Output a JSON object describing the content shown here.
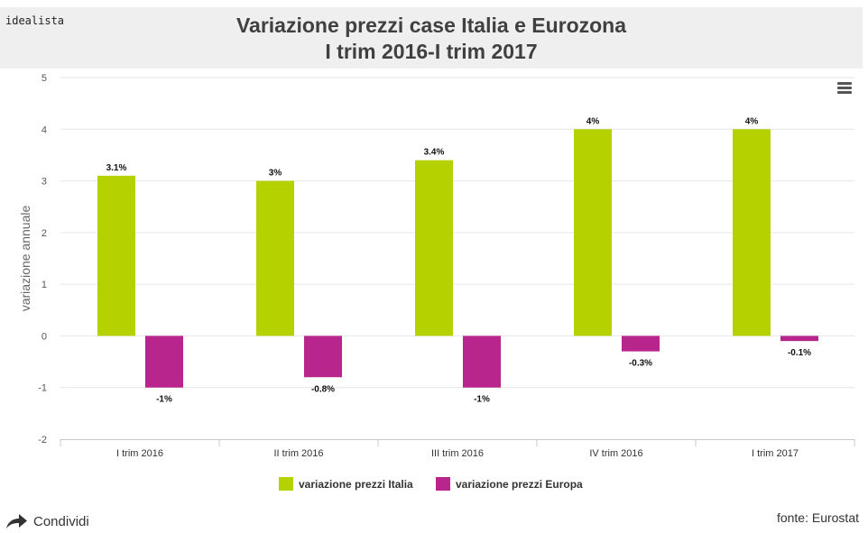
{
  "header": {
    "brand": "idealista",
    "title_line1": "Variazione prezzi case Italia e Eurozona",
    "title_line2": "I trim 2016-I trim 2017"
  },
  "chart_data": {
    "type": "bar",
    "title": "Variazione prezzi case Italia e Eurozona I trim 2016-I trim 2017",
    "xlabel": "",
    "ylabel": "variazione annuale",
    "ylim": [
      -2,
      5
    ],
    "yticks": [
      "-2",
      "-1",
      "0",
      "1",
      "2",
      "3",
      "4",
      "5"
    ],
    "grid": true,
    "legend_position": "bottom",
    "categories": [
      "I trim 2016",
      "II trim 2016",
      "III trim 2016",
      "IV trim 2016",
      "I trim 2017"
    ],
    "series": [
      {
        "name": "variazione prezzi Italia",
        "color": "#b5d100",
        "values": [
          3.1,
          3,
          3.4,
          4,
          4
        ],
        "labels": [
          "3.1%",
          "3%",
          "3.4%",
          "4%",
          "4%"
        ]
      },
      {
        "name": "variazione prezzi Europa",
        "color": "#b8268d",
        "values": [
          -1,
          -0.8,
          -1,
          -0.3,
          -0.1
        ],
        "labels": [
          "-1%",
          "-0.8%",
          "-1%",
          "-0.3%",
          "-0.1%"
        ]
      }
    ]
  },
  "footer": {
    "share_label": "Condividi",
    "share_icon": "share-arrow-icon",
    "source": "fonte: Eurostat"
  },
  "toolbar": {
    "menu_icon": "hamburger-menu-icon"
  }
}
